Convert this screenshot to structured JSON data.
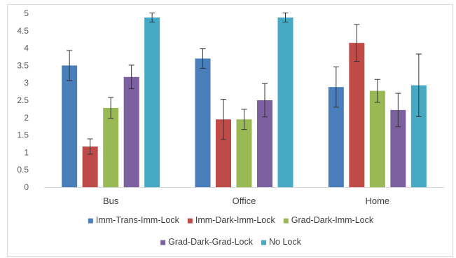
{
  "chart_data": {
    "type": "bar",
    "categories": [
      "Bus",
      "Office",
      "Home"
    ],
    "ylim": [
      0,
      5
    ],
    "yticks": [
      0,
      0.5,
      1,
      1.5,
      2,
      2.5,
      3,
      3.5,
      4,
      4.5,
      5
    ],
    "ytick_labels": [
      "0",
      "0.5",
      "1",
      "1.5",
      "2",
      "2.5",
      "3",
      "3.5",
      "4",
      "4.5",
      "5"
    ],
    "grid": false,
    "legend_position": "bottom",
    "error_bars": true,
    "series": [
      {
        "name": "Imm-Trans-Imm-Lock",
        "color": "#4a7ebb",
        "values": [
          3.5,
          3.7,
          2.88
        ],
        "errors": [
          0.43,
          0.28,
          0.58
        ]
      },
      {
        "name": "Imm-Dark-Imm-Lock",
        "color": "#be4b48",
        "values": [
          1.17,
          1.95,
          4.15
        ],
        "errors": [
          0.22,
          0.58,
          0.53
        ]
      },
      {
        "name": "Grad-Dark-Imm-Lock",
        "color": "#98b954",
        "values": [
          2.28,
          1.95,
          2.77
        ],
        "errors": [
          0.3,
          0.29,
          0.33
        ]
      },
      {
        "name": "Grad-Dark-Grad-Lock",
        "color": "#7d60a0",
        "values": [
          3.17,
          2.5,
          2.22
        ],
        "errors": [
          0.34,
          0.48,
          0.48
        ]
      },
      {
        "name": "No Lock",
        "color": "#46aac5",
        "values": [
          4.88,
          4.88,
          2.93
        ],
        "errors": [
          0.13,
          0.13,
          0.9
        ]
      }
    ]
  }
}
